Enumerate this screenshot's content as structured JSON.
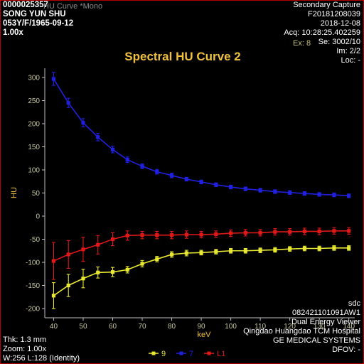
{
  "patient": {
    "id": "0000025357",
    "name": "SONG YUN SHU",
    "info": "053Y/F/1965-09-12",
    "zoom_factor": "1.00x"
  },
  "ghost_title": "HU Curve *Mono",
  "ghost_ex": "Ex: 8",
  "study": {
    "type": "Secondary Capture",
    "accession": "F20181208039",
    "date": "2018-12-08",
    "acq": "Acq: 10:28:25.402259",
    "series": "Se: 3002/10",
    "image": "Im: 2/2",
    "location": "Loc: -"
  },
  "footer_right": {
    "user": "sdc",
    "station": "082421101091AW1",
    "app": "Dual Energy Viewer",
    "hospital": "Qingdao Huangdao TCM Hospital",
    "vendor": "GE MEDICAL SYSTEMS",
    "dfov": "DFOV: -"
  },
  "footer_left": {
    "thickness": "Thk: 1.3 mm",
    "zoom": "Zoom: 1.00x",
    "window": "W:256 L:128 (Identity)"
  },
  "colors": {
    "background": "#000000",
    "border": "#b40000",
    "axis": "#c0c0c0",
    "tick_text": "#c8c8a0",
    "title": "#f0c040"
  },
  "chart_data": {
    "type": "line",
    "title": "Spectral HU Curve 2",
    "xlabel": "keV",
    "ylabel": "HU",
    "xlim": [
      37,
      142
    ],
    "ylim": [
      -220,
      320
    ],
    "xticks": [
      40,
      50,
      60,
      70,
      80,
      90,
      100,
      110,
      120,
      130,
      140
    ],
    "yticks": [
      -200,
      -150,
      -100,
      -50,
      0,
      50,
      100,
      150,
      200,
      250,
      300
    ],
    "x": [
      40,
      45,
      50,
      55,
      60,
      65,
      70,
      75,
      80,
      85,
      90,
      95,
      100,
      105,
      110,
      115,
      120,
      125,
      130,
      135,
      140
    ],
    "series": [
      {
        "name": "9",
        "color": "#e8e832",
        "values": [
          -172,
          -150,
          -135,
          -122,
          -121,
          -116,
          -103,
          -93,
          -83,
          -80,
          -79,
          -77,
          -75,
          -75,
          -74,
          -73,
          -71,
          -70,
          -70,
          -69,
          -69
        ],
        "errors": [
          28,
          24,
          20,
          12,
          10,
          7,
          7,
          6,
          6,
          6,
          5,
          5,
          5,
          5,
          5,
          5,
          5,
          5,
          5,
          5,
          5
        ]
      },
      {
        "name": "7",
        "color": "#2020e0",
        "values": [
          297,
          245,
          202,
          171,
          144,
          122,
          108,
          96,
          88,
          80,
          74,
          68,
          63,
          59,
          56,
          53,
          51,
          49,
          47,
          46,
          44
        ],
        "errors": [
          14,
          10,
          9,
          8,
          7,
          6,
          5,
          5,
          5,
          4,
          4,
          4,
          4,
          4,
          4,
          4,
          4,
          4,
          4,
          4,
          4
        ]
      },
      {
        "name": "L1",
        "color": "#e01818",
        "values": [
          -97,
          -83,
          -72,
          -62,
          -50,
          -42,
          -41,
          -41,
          -41,
          -40,
          -40,
          -39,
          -37,
          -36,
          -36,
          -34,
          -34,
          -33,
          -33,
          -32,
          -32
        ],
        "errors": [
          40,
          30,
          26,
          20,
          14,
          10,
          8,
          8,
          8,
          8,
          7,
          7,
          7,
          7,
          7,
          7,
          7,
          7,
          7,
          7,
          7
        ]
      }
    ],
    "legend": "bottom-center"
  }
}
